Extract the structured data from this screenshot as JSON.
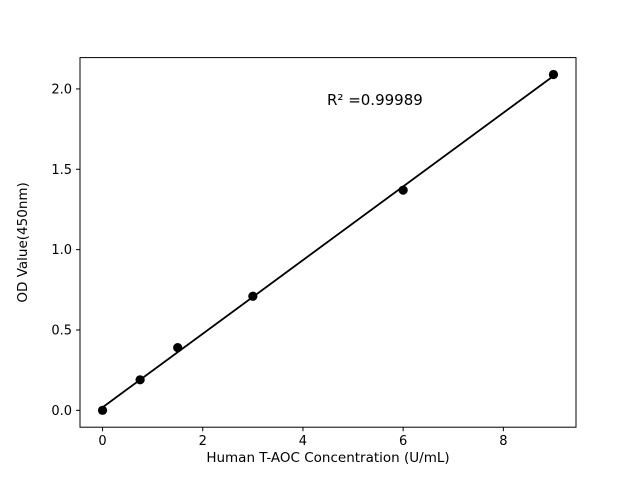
{
  "chart_data": {
    "type": "scatter",
    "title": "",
    "xlabel": "Human T-AOC Concentration (U/mL)",
    "ylabel": "OD Value(450nm)",
    "x": [
      0,
      0.75,
      1.5,
      3,
      6,
      9
    ],
    "y": [
      0.0,
      0.19,
      0.39,
      0.71,
      1.37,
      2.09
    ],
    "xlim": [
      -0.45,
      9.45
    ],
    "ylim": [
      -0.105,
      2.195
    ],
    "xticks": [
      0,
      2,
      4,
      6,
      8
    ],
    "xtick_labels": [
      "0",
      "2",
      "4",
      "6",
      "8"
    ],
    "yticks": [
      0,
      0.5,
      1,
      1.5,
      2
    ],
    "ytick_labels": [
      "0.0",
      "0.5",
      "1.0",
      "1.5",
      "2.0"
    ],
    "fit_line": true,
    "annotation": {
      "text": "R² =0.99989",
      "x": 4.48,
      "y": 1.9
    },
    "marker_color": "#000000",
    "line_color": "#000000",
    "background": "#ffffff",
    "grid": false,
    "legend": "none"
  }
}
